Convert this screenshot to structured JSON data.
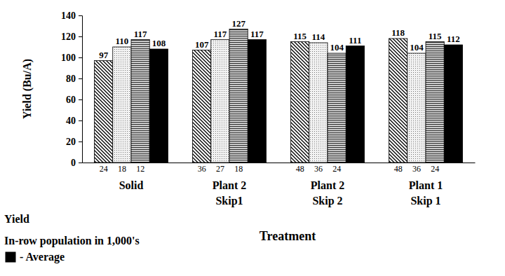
{
  "chart_data": {
    "type": "bar",
    "x_label": "Treatment",
    "y_label": "Yield (Bu/A)",
    "categories": [
      [
        "Solid"
      ],
      [
        "Plant 2",
        "Skip1"
      ],
      [
        "Plant 2",
        "Skip 2"
      ],
      [
        "Plant 1",
        "Skip 1"
      ]
    ],
    "series": [
      {
        "color": "#000000",
        "values": [
          97,
          107,
          115,
          118
        ],
        "populations": [
          24,
          36,
          48,
          48
        ]
      },
      {
        "color": "#777777",
        "values": [
          110,
          117,
          114,
          104
        ],
        "populations": [
          18,
          27,
          36,
          36
        ]
      },
      {
        "color": "#333333",
        "values": [
          117,
          127,
          104,
          115
        ],
        "populations": [
          12,
          18,
          24,
          24
        ]
      },
      {
        "name": "- Average",
        "color": "#000000",
        "values": [
          108,
          117,
          111,
          112
        ]
      }
    ],
    "ylim": [
      0,
      140
    ],
    "yticks": [
      0,
      20,
      40,
      60,
      80,
      100,
      120,
      140
    ],
    "grid": false,
    "data_labels": true,
    "annotations": [
      "Yield",
      "In-row population in 1,000's"
    ]
  }
}
